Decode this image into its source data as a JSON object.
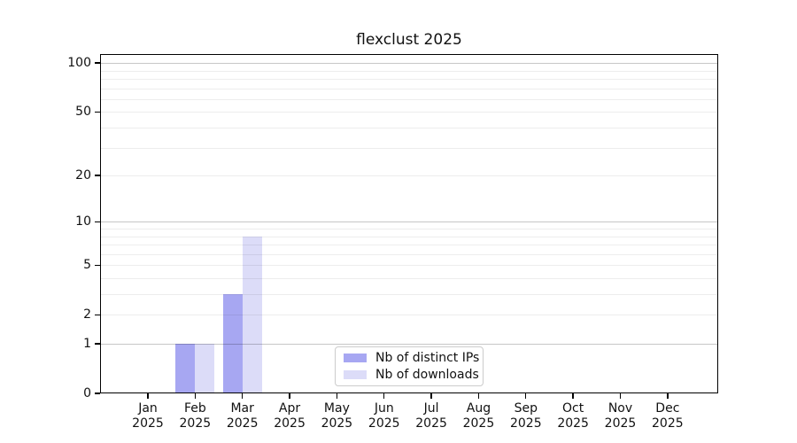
{
  "chart_data": {
    "type": "bar",
    "title": "flexclust 2025",
    "categories": [
      "Jan 2025",
      "Feb 2025",
      "Mar 2025",
      "Apr 2025",
      "May 2025",
      "Jun 2025",
      "Jul 2025",
      "Aug 2025",
      "Sep 2025",
      "Oct 2025",
      "Nov 2025",
      "Dec 2025"
    ],
    "series": [
      {
        "name": "Nb of distinct IPs",
        "color": "#a7a7f2",
        "values": [
          0,
          1,
          3,
          0,
          0,
          0,
          0,
          0,
          0,
          0,
          0,
          0
        ]
      },
      {
        "name": "Nb of downloads",
        "color": "#dcdcf8",
        "values": [
          0,
          1,
          8,
          0,
          0,
          0,
          0,
          0,
          0,
          0,
          0,
          0
        ]
      }
    ],
    "xlabel": "",
    "ylabel": "",
    "yscale": "log10(1+y)",
    "ylim": [
      0,
      112
    ],
    "y_tick_values": [
      0,
      1,
      2,
      5,
      10,
      20,
      50,
      100
    ],
    "y_major_grid_values": [
      1,
      10,
      100
    ],
    "y_minor_grid_values": [
      2,
      3,
      4,
      5,
      6,
      7,
      8,
      9,
      20,
      30,
      40,
      50,
      60,
      70,
      80,
      90
    ],
    "grid": "horizontal",
    "legend_position": "inside-bottom-center"
  },
  "colors": {
    "bar_distinct_ips": "#a7a7f2",
    "bar_downloads": "#dcdcf8",
    "frame": "#000000",
    "legend_border": "#cccccc",
    "text": "#111111"
  }
}
